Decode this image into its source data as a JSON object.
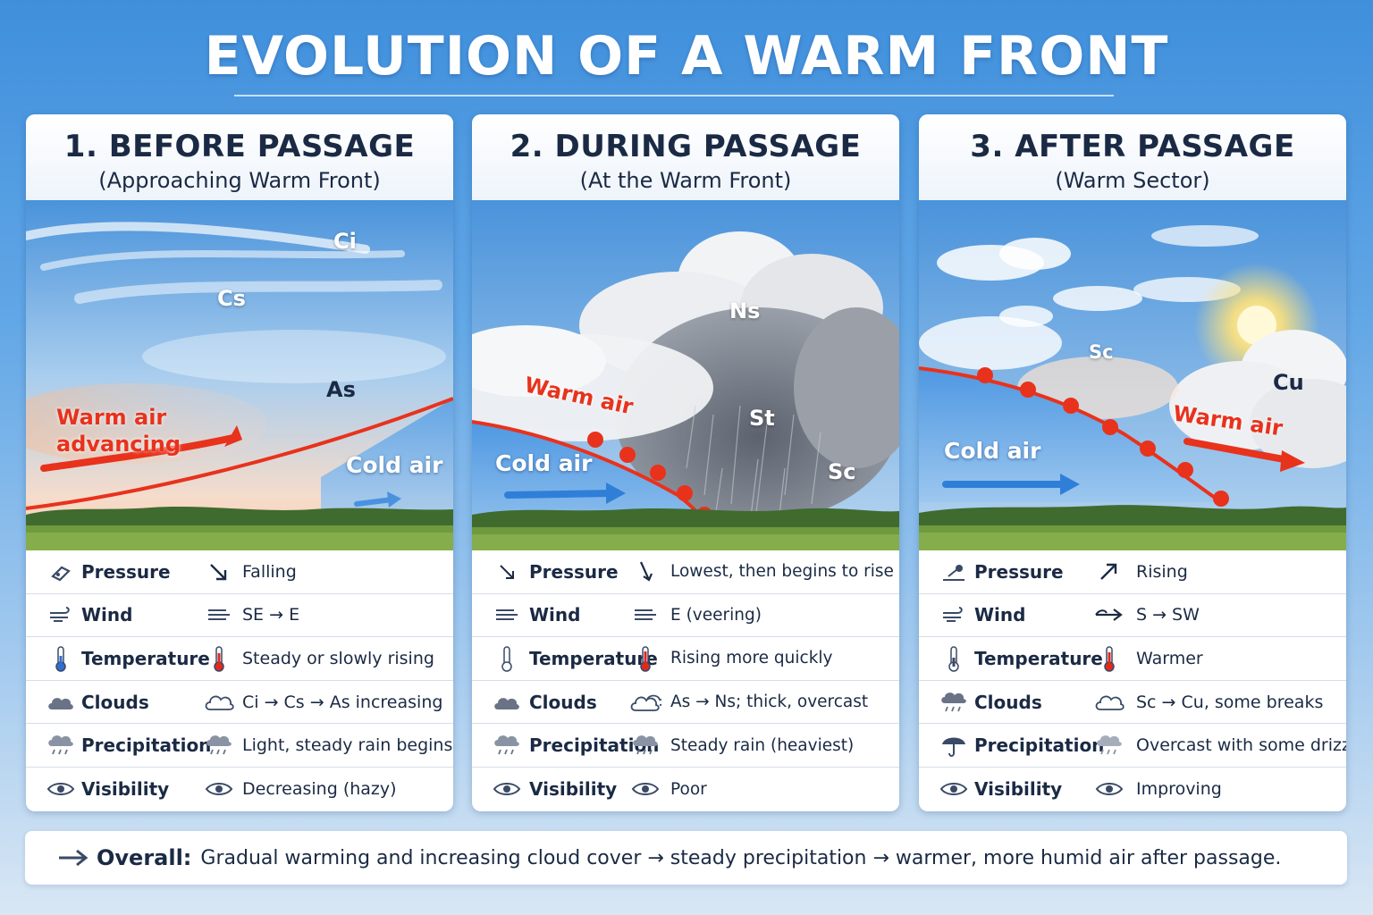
{
  "title": "EVOLUTION OF A WARM FRONT",
  "panels": [
    {
      "title": "1. BEFORE PASSAGE",
      "subtitle": "(Approaching Warm Front)",
      "scene_labels": {
        "ci": "Ci",
        "cs": "Cs",
        "as": "As",
        "warm_air_1": "Warm air",
        "warm_air_2": "advancing",
        "cold_air": "Cold air"
      },
      "rows": [
        {
          "param": "Pressure",
          "value": "Falling",
          "icon": "pressure-gauge-icon",
          "value_icon": "arrow-down-right-icon"
        },
        {
          "param": "Wind",
          "value": "SE → E",
          "icon": "wind-icon",
          "value_icon": "wind-icon"
        },
        {
          "param": "Temperature",
          "value": "Steady or slowly rising",
          "icon": "thermometer-cold-icon",
          "value_icon": "thermometer-warm-icon"
        },
        {
          "param": "Clouds",
          "value": "Ci → Cs → As increasing",
          "icon": "cloud-icon",
          "value_icon": "cloud-outline-icon"
        },
        {
          "param": "Precipitation",
          "value": "Light, steady rain begins",
          "icon": "rain-cloud-icon",
          "value_icon": "rain-cloud-icon"
        },
        {
          "param": "Visibility",
          "value": "Decreasing (hazy)",
          "icon": "eye-icon",
          "value_icon": "eye-icon"
        }
      ]
    },
    {
      "title": "2. DURING PASSAGE",
      "subtitle": "(At the Warm Front)",
      "scene_labels": {
        "ns": "Ns",
        "st": "St",
        "sc": "Sc",
        "warm_air": "Warm air",
        "cold_air": "Cold air"
      },
      "rows": [
        {
          "param": "Pressure",
          "value": "Lowest, then begins to rise",
          "icon": "arrow-down-right-icon",
          "value_icon": "arrow-down-icon"
        },
        {
          "param": "Wind",
          "value": "E (veering)",
          "icon": "wind-icon",
          "value_icon": "wind-icon"
        },
        {
          "param": "Temperature",
          "value": "Rising more quickly",
          "icon": "thermometer-icon",
          "value_icon": "thermometer-warm-icon"
        },
        {
          "param": "Clouds",
          "value": "As → Ns; thick, overcast",
          "icon": "cloud-icon",
          "value_icon": "cloud-outline-icon"
        },
        {
          "param": "Precipitation",
          "value": "Steady rain (heaviest)",
          "icon": "rain-cloud-icon",
          "value_icon": "rain-cloud-icon"
        },
        {
          "param": "Visibility",
          "value": "Poor",
          "icon": "eye-icon",
          "value_icon": "eye-icon"
        }
      ]
    },
    {
      "title": "3. AFTER PASSAGE",
      "subtitle": "(Warm Sector)",
      "scene_labels": {
        "sc": "Sc",
        "cu": "Cu",
        "warm_air": "Warm air",
        "cold_air": "Cold air"
      },
      "rows": [
        {
          "param": "Pressure",
          "value": "Rising",
          "icon": "pressure-gauge-icon",
          "value_icon": "arrow-up-right-icon"
        },
        {
          "param": "Wind",
          "value": "S → SW",
          "icon": "wind-icon",
          "value_icon": "wind-arrow-icon"
        },
        {
          "param": "Temperature",
          "value": "Warmer",
          "icon": "thermometer-icon",
          "value_icon": "thermometer-warm-icon"
        },
        {
          "param": "Clouds",
          "value": "Sc → Cu, some breaks",
          "icon": "rain-cloud-icon",
          "value_icon": "cloud-outline-icon"
        },
        {
          "param": "Precipitation",
          "value": "Overcast with some drizzle",
          "icon": "umbrella-icon",
          "value_icon": "rain-cloud-icon"
        },
        {
          "param": "Visibility",
          "value": "Improving",
          "icon": "eye-icon",
          "value_icon": "eye-icon"
        }
      ]
    }
  ],
  "summary": {
    "lead": "Overall:",
    "text": "Gradual warming and increasing cloud cover → steady precipitation → warmer, more humid air after passage."
  },
  "colors": {
    "warm_front": "#e8321c",
    "cold_air": "#2f7fd8",
    "title_text": "#1b2a44"
  }
}
